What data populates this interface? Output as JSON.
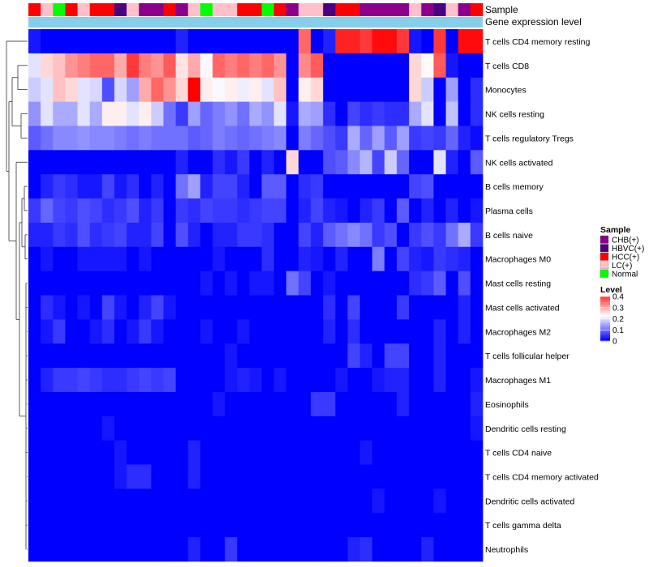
{
  "chart_data": {
    "type": "heatmap",
    "annotation_rows": [
      "Sample",
      "Gene expression level"
    ],
    "rows": [
      "T cells CD4 memory resting",
      "T cells CD8",
      "Monocytes",
      "NK cells resting",
      "T cells regulatory  Tregs",
      "NK cells activated",
      "B cells memory",
      "Plasma cells",
      "B cells naive",
      "Macrophages M0",
      "Mast cells resting",
      "Mast cells activated",
      "Macrophages M2",
      "T cells follicular helper",
      "Macrophages M1",
      "Eosinophils",
      "Dendritic cells resting",
      "T cells CD4 naive",
      "T cells CD4 memory activated",
      "Dendritic cells activated",
      "T cells gamma delta",
      "Neutrophils"
    ],
    "sample_groups": [
      "HCC(+)",
      "LC(+)",
      "Normal",
      "HCC(+)",
      "LC(+)",
      "HCC(+)",
      "HCC(+)",
      "HBVC(+)",
      "LC(+)",
      "CHB(+)",
      "CHB(+)",
      "HCC(+)",
      "CHB(+)",
      "LC(+)",
      "Normal",
      "LC(+)",
      "LC(+)",
      "HCC(+)",
      "HCC(+)",
      "Normal",
      "HCC(+)",
      "CHB(+)",
      "LC(+)",
      "LC(+)",
      "HBVC(+)",
      "HCC(+)",
      "HCC(+)",
      "CHB(+)",
      "CHB(+)",
      "CHB(+)",
      "CHB(+)",
      "LC(+)",
      "CHB(+)",
      "HBVC(+)",
      "LC(+)",
      "CHB(+)",
      "HCC(+)"
    ],
    "values": [
      [
        0.02,
        0.0,
        0.0,
        0.0,
        0.0,
        0.0,
        0.0,
        0.0,
        0.0,
        0.0,
        0.0,
        0.0,
        0.03,
        0.0,
        0.0,
        0.0,
        0.0,
        0.0,
        0.0,
        0.0,
        0.0,
        0.0,
        0.36,
        0.0,
        0.03,
        0.42,
        0.42,
        0.4,
        0.44,
        0.44,
        0.4,
        0.02,
        0.0,
        0.4,
        0.0,
        0.44,
        0.44
      ],
      [
        0.2,
        0.26,
        0.28,
        0.32,
        0.34,
        0.36,
        0.36,
        0.3,
        0.4,
        0.34,
        0.32,
        0.37,
        0.25,
        0.3,
        0.22,
        0.36,
        0.34,
        0.36,
        0.34,
        0.36,
        0.32,
        0.0,
        0.33,
        0.37,
        0.0,
        0.0,
        0.0,
        0.0,
        0.0,
        0.0,
        0.0,
        0.26,
        0.23,
        0.37,
        0.02,
        0.0,
        0.0
      ],
      [
        0.18,
        0.2,
        0.28,
        0.26,
        0.2,
        0.19,
        0.07,
        0.19,
        0.14,
        0.3,
        0.36,
        0.32,
        0.26,
        0.45,
        0.24,
        0.22,
        0.24,
        0.21,
        0.24,
        0.2,
        0.28,
        0.0,
        0.24,
        0.26,
        0.0,
        0.0,
        0.0,
        0.0,
        0.0,
        0.0,
        0.0,
        0.26,
        0.18,
        0.0,
        0.14,
        0.0,
        0.04
      ],
      [
        0.13,
        0.2,
        0.15,
        0.15,
        0.2,
        0.15,
        0.24,
        0.24,
        0.2,
        0.24,
        0.18,
        0.1,
        0.05,
        0.14,
        0.09,
        0.11,
        0.13,
        0.1,
        0.15,
        0.13,
        0.2,
        0.02,
        0.15,
        0.14,
        0.04,
        0.0,
        0.06,
        0.04,
        0.05,
        0.04,
        0.04,
        0.15,
        0.2,
        0.0,
        0.17,
        0.0,
        0.04
      ],
      [
        0.08,
        0.1,
        0.12,
        0.12,
        0.13,
        0.12,
        0.12,
        0.11,
        0.1,
        0.11,
        0.1,
        0.1,
        0.1,
        0.08,
        0.09,
        0.11,
        0.1,
        0.09,
        0.1,
        0.11,
        0.12,
        0.0,
        0.11,
        0.09,
        0.07,
        0.05,
        0.15,
        0.09,
        0.14,
        0.08,
        0.14,
        0.05,
        0.06,
        0.05,
        0.09,
        0.03,
        0.01
      ],
      [
        0.0,
        0.0,
        0.0,
        0.0,
        0.0,
        0.0,
        0.0,
        0.0,
        0.0,
        0.0,
        0.0,
        0.0,
        0.03,
        0.0,
        0.0,
        0.04,
        0.02,
        0.05,
        0.0,
        0.03,
        0.0,
        0.26,
        0.0,
        0.0,
        0.07,
        0.08,
        0.12,
        0.16,
        0.06,
        0.18,
        0.09,
        0.0,
        0.0,
        0.2,
        0.03,
        0.0,
        0.08
      ],
      [
        0.0,
        0.03,
        0.05,
        0.04,
        0.02,
        0.02,
        0.06,
        0.02,
        0.04,
        0.0,
        0.03,
        0.0,
        0.1,
        0.14,
        0.03,
        0.06,
        0.06,
        0.03,
        0.0,
        0.08,
        0.08,
        0.0,
        0.04,
        0.05,
        0.0,
        0.0,
        0.0,
        0.0,
        0.0,
        0.0,
        0.0,
        0.06,
        0.07,
        0.0,
        0.0,
        0.0,
        0.0
      ],
      [
        0.05,
        0.09,
        0.06,
        0.05,
        0.07,
        0.06,
        0.04,
        0.05,
        0.07,
        0.03,
        0.05,
        0.0,
        0.05,
        0.04,
        0.06,
        0.05,
        0.05,
        0.04,
        0.05,
        0.06,
        0.06,
        0.0,
        0.03,
        0.06,
        0.03,
        0.02,
        0.0,
        0.03,
        0.05,
        0.0,
        0.08,
        0.0,
        0.03,
        0.0,
        0.03,
        0.0,
        0.02
      ],
      [
        0.03,
        0.03,
        0.05,
        0.04,
        0.07,
        0.04,
        0.05,
        0.06,
        0.03,
        0.03,
        0.06,
        0.0,
        0.07,
        0.03,
        0.0,
        0.03,
        0.03,
        0.05,
        0.05,
        0.04,
        0.0,
        0.0,
        0.06,
        0.03,
        0.08,
        0.1,
        0.12,
        0.1,
        0.05,
        0.07,
        0.0,
        0.05,
        0.07,
        0.05,
        0.1,
        0.15,
        0.05
      ],
      [
        0.0,
        0.02,
        0.0,
        0.0,
        0.02,
        0.02,
        0.02,
        0.02,
        0.0,
        0.02,
        0.0,
        0.0,
        0.0,
        0.0,
        0.0,
        0.02,
        0.0,
        0.0,
        0.0,
        0.04,
        0.0,
        0.0,
        0.03,
        0.02,
        0.0,
        0.03,
        0.0,
        0.0,
        0.11,
        0.0,
        0.06,
        0.03,
        0.02,
        0.05,
        0.04,
        0.03,
        0.0
      ],
      [
        0.0,
        0.0,
        0.0,
        0.0,
        0.0,
        0.0,
        0.0,
        0.0,
        0.0,
        0.0,
        0.0,
        0.0,
        0.0,
        0.0,
        0.02,
        0.0,
        0.02,
        0.0,
        0.02,
        0.02,
        0.0,
        0.1,
        0.06,
        0.0,
        0.02,
        0.0,
        0.0,
        0.0,
        0.0,
        0.0,
        0.0,
        0.04,
        0.05,
        0.08,
        0.0,
        0.07,
        0.0
      ],
      [
        0.0,
        0.04,
        0.02,
        0.0,
        0.02,
        0.0,
        0.06,
        0.02,
        0.0,
        0.03,
        0.06,
        0.02,
        0.0,
        0.0,
        0.0,
        0.0,
        0.0,
        0.0,
        0.0,
        0.0,
        0.0,
        0.0,
        0.0,
        0.0,
        0.04,
        0.0,
        0.06,
        0.0,
        0.0,
        0.0,
        0.05,
        0.0,
        0.0,
        0.0,
        0.0,
        0.03,
        0.0
      ],
      [
        0.0,
        0.02,
        0.05,
        0.0,
        0.0,
        0.02,
        0.04,
        0.0,
        0.02,
        0.05,
        0.02,
        0.0,
        0.0,
        0.0,
        0.02,
        0.0,
        0.0,
        0.02,
        0.0,
        0.0,
        0.0,
        0.0,
        0.0,
        0.0,
        0.03,
        0.0,
        0.04,
        0.0,
        0.0,
        0.0,
        0.0,
        0.0,
        0.0,
        0.03,
        0.0,
        0.03,
        0.0
      ],
      [
        0.0,
        0.0,
        0.0,
        0.0,
        0.0,
        0.0,
        0.0,
        0.0,
        0.0,
        0.0,
        0.0,
        0.0,
        0.0,
        0.0,
        0.0,
        0.0,
        0.02,
        0.0,
        0.0,
        0.0,
        0.0,
        0.0,
        0.0,
        0.0,
        0.0,
        0.0,
        0.06,
        0.03,
        0.0,
        0.06,
        0.06,
        0.0,
        0.0,
        0.03,
        0.0,
        0.0,
        0.0
      ],
      [
        0.0,
        0.03,
        0.05,
        0.05,
        0.06,
        0.05,
        0.04,
        0.04,
        0.05,
        0.06,
        0.05,
        0.06,
        0.0,
        0.0,
        0.0,
        0.0,
        0.02,
        0.03,
        0.02,
        0.0,
        0.02,
        0.0,
        0.0,
        0.0,
        0.0,
        0.02,
        0.0,
        0.0,
        0.02,
        0.03,
        0.03,
        0.0,
        0.0,
        0.03,
        0.0,
        0.0,
        0.02
      ],
      [
        0.0,
        0.0,
        0.0,
        0.0,
        0.0,
        0.0,
        0.0,
        0.0,
        0.0,
        0.0,
        0.0,
        0.0,
        0.0,
        0.0,
        0.0,
        0.02,
        0.0,
        0.0,
        0.0,
        0.0,
        0.0,
        0.0,
        0.0,
        0.05,
        0.05,
        0.0,
        0.0,
        0.0,
        0.0,
        0.0,
        0.03,
        0.0,
        0.0,
        0.0,
        0.0,
        0.0,
        0.03
      ],
      [
        0.0,
        0.0,
        0.0,
        0.0,
        0.0,
        0.0,
        0.02,
        0.0,
        0.0,
        0.0,
        0.0,
        0.0,
        0.0,
        0.0,
        0.0,
        0.0,
        0.0,
        0.0,
        0.0,
        0.0,
        0.0,
        0.0,
        0.0,
        0.0,
        0.0,
        0.0,
        0.0,
        0.0,
        0.0,
        0.0,
        0.0,
        0.0,
        0.0,
        0.0,
        0.0,
        0.0,
        0.02
      ],
      [
        0.0,
        0.0,
        0.0,
        0.0,
        0.0,
        0.0,
        0.0,
        0.02,
        0.0,
        0.0,
        0.0,
        0.0,
        0.0,
        0.03,
        0.0,
        0.0,
        0.0,
        0.0,
        0.0,
        0.0,
        0.0,
        0.0,
        0.0,
        0.0,
        0.0,
        0.0,
        0.0,
        0.02,
        0.0,
        0.0,
        0.0,
        0.0,
        0.0,
        0.0,
        0.0,
        0.0,
        0.0
      ],
      [
        0.0,
        0.0,
        0.0,
        0.0,
        0.0,
        0.0,
        0.0,
        0.02,
        0.04,
        0.04,
        0.0,
        0.0,
        0.0,
        0.03,
        0.0,
        0.0,
        0.0,
        0.0,
        0.0,
        0.0,
        0.0,
        0.0,
        0.0,
        0.0,
        0.0,
        0.0,
        0.0,
        0.0,
        0.0,
        0.0,
        0.0,
        0.0,
        0.0,
        0.0,
        0.0,
        0.0,
        0.0
      ],
      [
        0.0,
        0.0,
        0.0,
        0.0,
        0.0,
        0.0,
        0.0,
        0.0,
        0.0,
        0.0,
        0.0,
        0.0,
        0.0,
        0.0,
        0.0,
        0.0,
        0.0,
        0.0,
        0.0,
        0.0,
        0.0,
        0.0,
        0.0,
        0.0,
        0.0,
        0.0,
        0.0,
        0.0,
        0.02,
        0.0,
        0.0,
        0.0,
        0.0,
        0.02,
        0.0,
        0.0,
        0.0
      ],
      [
        0.0,
        0.0,
        0.0,
        0.0,
        0.0,
        0.0,
        0.0,
        0.0,
        0.0,
        0.0,
        0.0,
        0.0,
        0.0,
        0.0,
        0.0,
        0.0,
        0.0,
        0.0,
        0.0,
        0.0,
        0.0,
        0.0,
        0.0,
        0.0,
        0.0,
        0.0,
        0.0,
        0.0,
        0.0,
        0.0,
        0.0,
        0.0,
        0.0,
        0.0,
        0.0,
        0.0,
        0.0
      ],
      [
        0.0,
        0.0,
        0.0,
        0.0,
        0.0,
        0.0,
        0.0,
        0.0,
        0.0,
        0.0,
        0.0,
        0.0,
        0.0,
        0.03,
        0.0,
        0.0,
        0.05,
        0.0,
        0.0,
        0.0,
        0.0,
        0.0,
        0.0,
        0.0,
        0.0,
        0.0,
        0.03,
        0.04,
        0.0,
        0.0,
        0.0,
        0.0,
        0.03,
        0.0,
        0.0,
        0.0,
        0.0
      ]
    ],
    "legend_sample": {
      "title": "Sample",
      "entries": [
        {
          "label": "CHB(+)",
          "color": "#8b008b"
        },
        {
          "label": "HBVC(+)",
          "color": "#4b0082"
        },
        {
          "label": "HCC(+)",
          "color": "#ff0000"
        },
        {
          "label": "LC(+)",
          "color": "#ffc0cb"
        },
        {
          "label": "Normal",
          "color": "#00ff00"
        }
      ]
    },
    "legend_level": {
      "title": "Level",
      "min": 0,
      "max": 0.4,
      "ticks": [
        0,
        0.1,
        0.2,
        0.3,
        0.4
      ],
      "tick_labels": [
        "0",
        "0.1",
        "0.2",
        "0.3",
        "0.4"
      ]
    },
    "gene_expression_color": "#87ceeb",
    "color_scale": [
      "#0000ff",
      "#ffffff",
      "#ff0000"
    ],
    "value_domain": [
      0,
      0.45
    ]
  }
}
